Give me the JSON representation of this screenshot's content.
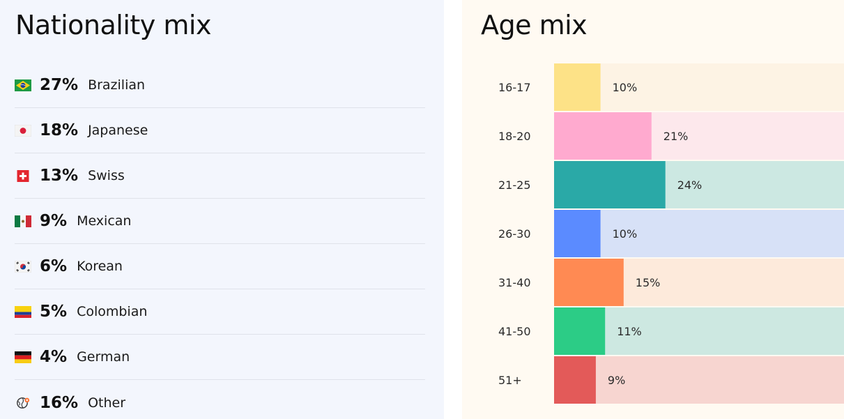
{
  "nationality": {
    "title": "Nationality mix",
    "items": [
      {
        "flag": "brazil-flag-icon",
        "pct": "27%",
        "label": "Brazilian"
      },
      {
        "flag": "japan-flag-icon",
        "pct": "18%",
        "label": "Japanese"
      },
      {
        "flag": "switzerland-flag-icon",
        "pct": "13%",
        "label": "Swiss"
      },
      {
        "flag": "mexico-flag-icon",
        "pct": "9%",
        "label": "Mexican"
      },
      {
        "flag": "south-korea-flag-icon",
        "pct": "6%",
        "label": "Korean"
      },
      {
        "flag": "colombia-flag-icon",
        "pct": "5%",
        "label": "Colombian"
      },
      {
        "flag": "germany-flag-icon",
        "pct": "4%",
        "label": "German"
      },
      {
        "flag": "globe-icon",
        "pct": "16%",
        "label": "Other"
      }
    ]
  },
  "age": {
    "title": "Age mix"
  },
  "chart_data": {
    "type": "bar",
    "orientation": "horizontal",
    "title": "Age mix",
    "categories": [
      "16-17",
      "18-20",
      "21-25",
      "26-30",
      "31-40",
      "41-50",
      "51+"
    ],
    "values": [
      10,
      21,
      24,
      10,
      15,
      11,
      9
    ],
    "value_labels": [
      "10%",
      "21%",
      "24%",
      "10%",
      "15%",
      "11%",
      "9%"
    ],
    "unit": "%",
    "colors": [
      "#fde287",
      "#ffaacf",
      "#2aa9a7",
      "#5b8bff",
      "#ff8a53",
      "#2ccc86",
      "#e35a59"
    ],
    "track_colors": [
      "#fdf3e4",
      "#fde8ec",
      "#cce8e2",
      "#d7e1f7",
      "#fdeadb",
      "#cde8e1",
      "#f7d5d0"
    ],
    "xlim": [
      0,
      62.5
    ],
    "grid": false,
    "legend": "none"
  }
}
